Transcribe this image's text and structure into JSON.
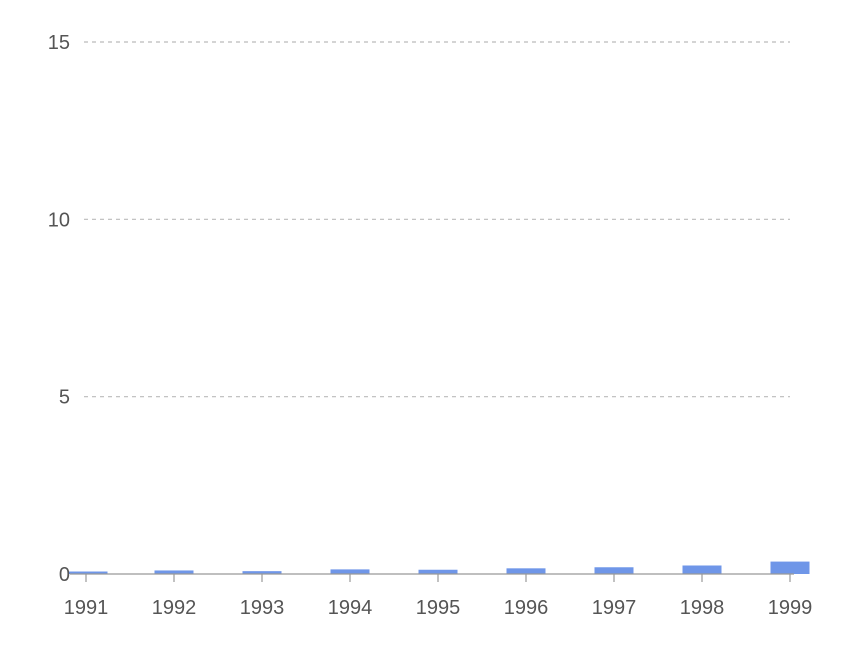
{
  "chart_data": {
    "type": "bar",
    "categories": [
      "1991",
      "1992",
      "1993",
      "1994",
      "1995",
      "1996",
      "1997",
      "1998",
      "1999"
    ],
    "values": [
      0.07,
      0.1,
      0.08,
      0.13,
      0.12,
      0.16,
      0.19,
      0.24,
      0.35
    ],
    "ylim": [
      0,
      15
    ],
    "yticks": [
      0,
      5,
      10,
      15
    ],
    "grid": true,
    "legend": "none",
    "colors": {
      "bar": "#6f96e8",
      "grid": "#bbbbbb",
      "axis": "#999999",
      "text": "#555555"
    }
  }
}
